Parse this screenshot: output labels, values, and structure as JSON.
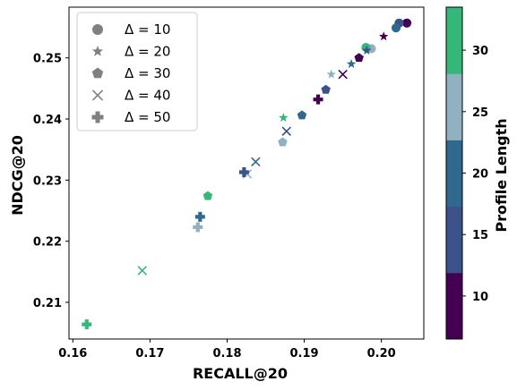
{
  "chart_data": {
    "type": "scatter",
    "xlabel": "RECALL@20",
    "ylabel": "NDCG@20",
    "xlim": [
      0.1595,
      0.2055
    ],
    "ylim": [
      0.204,
      0.2583
    ],
    "xticks": [
      0.16,
      0.17,
      0.18,
      0.19,
      0.2
    ],
    "xtick_labels": [
      "0.16",
      "0.17",
      "0.18",
      "0.19",
      "0.20"
    ],
    "yticks": [
      0.21,
      0.22,
      0.23,
      0.24,
      0.25
    ],
    "ytick_labels": [
      "0.21",
      "0.22",
      "0.23",
      "0.24",
      "0.25"
    ],
    "legend_position": "top-left",
    "legend_marker_color": "#808080",
    "legend": [
      {
        "marker": "circle",
        "label": "Δ = 10"
      },
      {
        "marker": "star",
        "label": "Δ = 20"
      },
      {
        "marker": "pentagon",
        "label": "Δ = 30"
      },
      {
        "marker": "x",
        "label": "Δ = 40"
      },
      {
        "marker": "plus",
        "label": "Δ = 50"
      }
    ],
    "colorbar": {
      "label": "Profile Length",
      "range": [
        6.5,
        33.5
      ],
      "ticks": [
        10,
        15,
        20,
        25,
        30
      ],
      "tick_labels": [
        "10",
        "15",
        "20",
        "25",
        "30"
      ],
      "colors": [
        "#440154",
        "#3b528b",
        "#31688e",
        "#90b2c0",
        "#35b779"
      ]
    },
    "points": [
      {
        "marker": "circle",
        "x": 0.2033,
        "y": 0.2557,
        "color": "#440154"
      },
      {
        "marker": "circle",
        "x": 0.2023,
        "y": 0.2557,
        "color": "#3b528b"
      },
      {
        "marker": "circle",
        "x": 0.2019,
        "y": 0.2549,
        "color": "#31688e"
      },
      {
        "marker": "circle",
        "x": 0.1987,
        "y": 0.2515,
        "color": "#90b2c0"
      },
      {
        "marker": "circle",
        "x": 0.198,
        "y": 0.2517,
        "color": "#35b779"
      },
      {
        "marker": "star",
        "x": 0.2003,
        "y": 0.2535,
        "color": "#440154"
      },
      {
        "marker": "star",
        "x": 0.1981,
        "y": 0.2512,
        "color": "#3b528b"
      },
      {
        "marker": "star",
        "x": 0.1961,
        "y": 0.249,
        "color": "#31688e"
      },
      {
        "marker": "star",
        "x": 0.1935,
        "y": 0.2473,
        "color": "#90b2c0"
      },
      {
        "marker": "star",
        "x": 0.1873,
        "y": 0.2402,
        "color": "#35b779"
      },
      {
        "marker": "pentagon",
        "x": 0.1971,
        "y": 0.25,
        "color": "#440154"
      },
      {
        "marker": "pentagon",
        "x": 0.1928,
        "y": 0.2448,
        "color": "#3b528b"
      },
      {
        "marker": "pentagon",
        "x": 0.1897,
        "y": 0.2406,
        "color": "#31688e"
      },
      {
        "marker": "pentagon",
        "x": 0.1872,
        "y": 0.2362,
        "color": "#90b2c0"
      },
      {
        "marker": "pentagon",
        "x": 0.1775,
        "y": 0.2274,
        "color": "#35b779"
      },
      {
        "marker": "x",
        "x": 0.195,
        "y": 0.2473,
        "color": "#440154"
      },
      {
        "marker": "x",
        "x": 0.1877,
        "y": 0.238,
        "color": "#3b528b"
      },
      {
        "marker": "x",
        "x": 0.1837,
        "y": 0.233,
        "color": "#31688e"
      },
      {
        "marker": "x",
        "x": 0.1826,
        "y": 0.231,
        "color": "#90b2c0"
      },
      {
        "marker": "x",
        "x": 0.169,
        "y": 0.2152,
        "color": "#35b779"
      },
      {
        "marker": "plus",
        "x": 0.1918,
        "y": 0.2432,
        "color": "#440154"
      },
      {
        "marker": "plus",
        "x": 0.1822,
        "y": 0.2313,
        "color": "#3b528b"
      },
      {
        "marker": "plus",
        "x": 0.1765,
        "y": 0.224,
        "color": "#31688e"
      },
      {
        "marker": "plus",
        "x": 0.1762,
        "y": 0.2223,
        "color": "#90b2c0"
      },
      {
        "marker": "plus",
        "x": 0.1618,
        "y": 0.2064,
        "color": "#35b779"
      }
    ]
  }
}
